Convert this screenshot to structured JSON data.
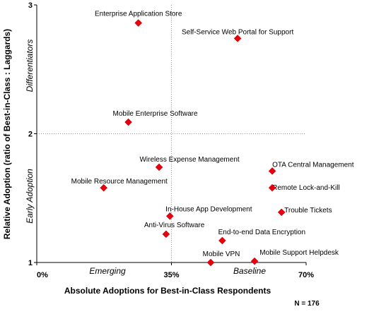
{
  "chart_data": {
    "type": "scatter",
    "xlabel": "Absolute Adoptions for Best-in-Class Respondents",
    "ylabel": "Relative Adoption (ratio of Best-in-Class : Laggards)",
    "xlim": [
      0,
      70
    ],
    "ylim": [
      1,
      3
    ],
    "x_ticks": [
      "0%",
      "35%",
      "70%"
    ],
    "y_ticks": [
      "1",
      "2",
      "3"
    ],
    "x_zones": [
      "Emerging",
      "Baseline"
    ],
    "y_zones": [
      "Early Adoption",
      "Differentiators"
    ],
    "note": "N = 176",
    "marker_color": "#e8000d",
    "points": [
      {
        "label": "Enterprise Application Store",
        "x": 26.4,
        "y": 2.86
      },
      {
        "label": "Self-Service Web Portal for Support",
        "x": 52.2,
        "y": 2.74
      },
      {
        "label": "Mobile Enterprise Software",
        "x": 23.8,
        "y": 2.09
      },
      {
        "label": "Wireless Expense Management",
        "x": 31.8,
        "y": 1.74
      },
      {
        "label": "Mobile Resource Management",
        "x": 17.4,
        "y": 1.58
      },
      {
        "label": "OTA Central Management",
        "x": 61.2,
        "y": 1.71
      },
      {
        "label": "Remote Lock-and-Kill",
        "x": 61.2,
        "y": 1.58
      },
      {
        "label": "In-House App Development",
        "x": 34.6,
        "y": 1.36
      },
      {
        "label": "Trouble Tickets",
        "x": 63.6,
        "y": 1.39
      },
      {
        "label": "Anti-Virus Software",
        "x": 33.6,
        "y": 1.22
      },
      {
        "label": "End-to-end Data Encryption",
        "x": 48.2,
        "y": 1.17
      },
      {
        "label": "Mobile VPN",
        "x": 45.2,
        "y": 1.0
      },
      {
        "label": "Mobile Support Helpdesk",
        "x": 56.6,
        "y": 1.01
      }
    ]
  }
}
